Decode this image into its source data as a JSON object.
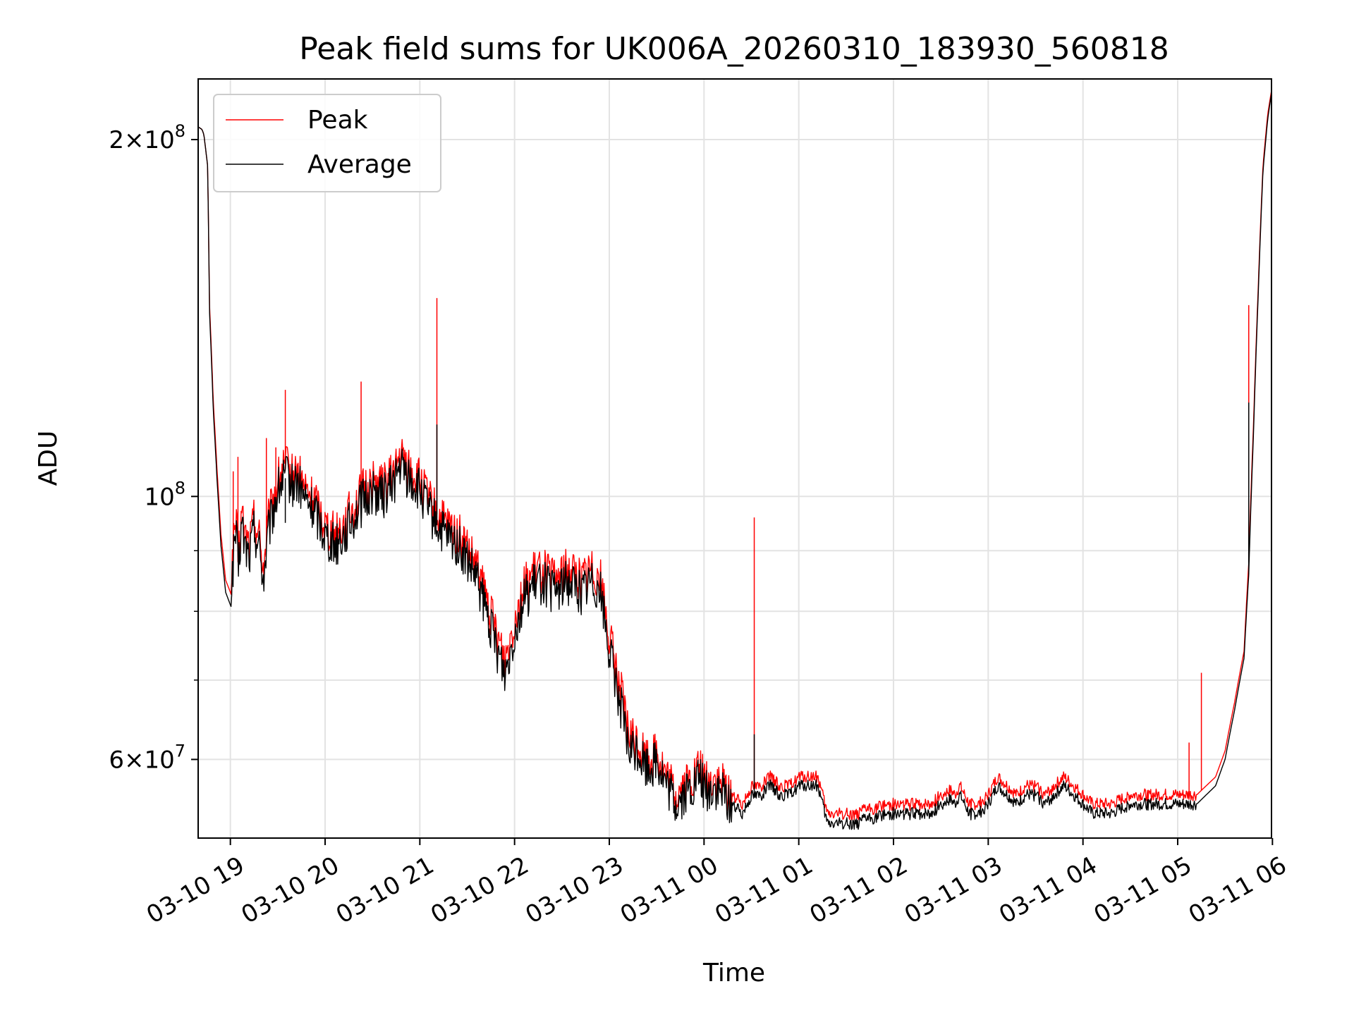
{
  "chart_data": {
    "type": "line",
    "title": "Peak field sums for UK006A_20260310_183930_560818",
    "xlabel": "Time",
    "ylabel": "ADU",
    "yscale": "log",
    "ylim": [
      51500000,
      225000000
    ],
    "xlim_hours": [
      18.66,
      29.99
    ],
    "grid": true,
    "legend_position": "upper left",
    "x_ticks": [
      {
        "hour": 19,
        "label": "03-10 19"
      },
      {
        "hour": 20,
        "label": "03-10 20"
      },
      {
        "hour": 21,
        "label": "03-10 21"
      },
      {
        "hour": 22,
        "label": "03-10 22"
      },
      {
        "hour": 23,
        "label": "03-10 23"
      },
      {
        "hour": 24,
        "label": "03-11 00"
      },
      {
        "hour": 25,
        "label": "03-11 01"
      },
      {
        "hour": 26,
        "label": "03-11 02"
      },
      {
        "hour": 27,
        "label": "03-11 03"
      },
      {
        "hour": 28,
        "label": "03-11 04"
      },
      {
        "hour": 29,
        "label": "03-11 05"
      },
      {
        "hour": 30,
        "label": "03-11 06"
      }
    ],
    "y_major_ticks": [
      {
        "value": 60000000,
        "mant": "6",
        "exp": "7"
      },
      {
        "value": 100000000,
        "mant": "",
        "exp": "8"
      },
      {
        "value": 200000000,
        "mant": "2",
        "exp": "8"
      }
    ],
    "y_minor_ticks": [
      70000000,
      80000000,
      90000000
    ],
    "series": [
      {
        "name": "Peak",
        "color": "#ff0000",
        "x_hours": [
          18.66,
          18.7,
          18.72,
          18.76,
          18.78,
          18.82,
          18.86,
          18.9,
          18.95,
          19.0,
          19.03,
          19.05,
          19.07,
          19.08,
          19.1,
          19.12,
          19.15,
          19.2,
          19.25,
          19.3,
          19.35,
          19.4,
          19.45,
          19.5,
          19.55,
          19.6,
          19.65,
          19.7,
          19.8,
          19.9,
          20.0,
          20.1,
          20.2,
          20.3,
          20.4,
          20.5,
          20.6,
          20.7,
          20.8,
          20.9,
          21.0,
          21.1,
          21.2,
          21.3,
          21.4,
          21.5,
          21.6,
          21.7,
          21.8,
          21.9,
          22.0,
          22.1,
          22.2,
          22.3,
          22.4,
          22.5,
          22.6,
          22.7,
          22.8,
          22.9,
          23.0,
          23.1,
          23.2,
          23.3,
          23.4,
          23.5,
          23.6,
          23.7,
          23.8,
          23.9,
          23.95,
          24.0,
          24.05,
          24.1,
          24.15,
          24.2,
          24.3,
          24.4,
          24.5,
          24.6,
          24.7,
          24.8,
          24.9,
          25.0,
          25.1,
          25.2,
          25.3,
          25.4,
          25.5,
          25.6,
          25.65,
          25.7,
          25.8,
          25.9,
          26.0,
          26.1,
          26.2,
          26.3,
          26.4,
          26.5,
          26.6,
          26.65,
          26.7,
          26.8,
          26.9,
          27.0,
          27.1,
          27.2,
          27.3,
          27.4,
          27.5,
          27.6,
          27.7,
          27.8,
          27.9,
          28.0,
          28.1,
          28.2,
          28.3,
          28.4,
          28.5,
          28.6,
          28.7,
          28.8,
          28.9,
          29.0,
          29.1,
          29.2,
          29.3,
          29.4,
          29.5,
          29.6,
          29.7,
          29.75,
          29.8,
          29.85,
          29.9,
          29.95,
          29.99
        ],
        "values_M": [
          205,
          204,
          202,
          190,
          145,
          120,
          105,
          93,
          85,
          83,
          90,
          95,
          93,
          88,
          92,
          97,
          93,
          91,
          96,
          93,
          87,
          95,
          99,
          103,
          105,
          106,
          104,
          105,
          101,
          99,
          95,
          93,
          95,
          98,
          101,
          103,
          102,
          104,
          108,
          105,
          103,
          99,
          96,
          94,
          93,
          90,
          87,
          82,
          77,
          73,
          79,
          84,
          86,
          87,
          85,
          86,
          87,
          85,
          87,
          86,
          76,
          70,
          63,
          62,
          60,
          61,
          58,
          56,
          57,
          58,
          59,
          58,
          57,
          58,
          57,
          57,
          56,
          55,
          57,
          57,
          58,
          57,
          57,
          58,
          58,
          58,
          54,
          54,
          54,
          54,
          54,
          54.5,
          54.5,
          55,
          55,
          55,
          55,
          55,
          55,
          56,
          56.5,
          56,
          57,
          55,
          55,
          56,
          58,
          57,
          56,
          57,
          57,
          56,
          57,
          58,
          57,
          56,
          55,
          55,
          55,
          55.5,
          56,
          56,
          56,
          56,
          56,
          56,
          56,
          56,
          57,
          58,
          61,
          67,
          74,
          88,
          115,
          150,
          190,
          210,
          220
        ],
        "spikes": [
          {
            "hour": 19.03,
            "value_M": 105
          },
          {
            "hour": 19.08,
            "value_M": 108
          },
          {
            "hour": 19.38,
            "value_M": 112
          },
          {
            "hour": 19.48,
            "value_M": 110
          },
          {
            "hour": 19.58,
            "value_M": 123
          },
          {
            "hour": 20.38,
            "value_M": 125
          },
          {
            "hour": 21.18,
            "value_M": 147
          },
          {
            "hour": 24.53,
            "value_M": 96
          },
          {
            "hour": 29.12,
            "value_M": 62
          },
          {
            "hour": 29.25,
            "value_M": 71
          },
          {
            "hour": 29.75,
            "value_M": 145
          }
        ]
      },
      {
        "name": "Average",
        "color": "#000000",
        "x_hours": [
          18.66,
          18.7,
          18.72,
          18.76,
          18.78,
          18.82,
          18.86,
          18.9,
          18.95,
          19.0,
          19.03,
          19.05,
          19.07,
          19.08,
          19.1,
          19.12,
          19.15,
          19.2,
          19.25,
          19.3,
          19.35,
          19.4,
          19.45,
          19.5,
          19.55,
          19.6,
          19.65,
          19.7,
          19.8,
          19.9,
          20.0,
          20.1,
          20.2,
          20.3,
          20.4,
          20.5,
          20.6,
          20.7,
          20.8,
          20.9,
          21.0,
          21.1,
          21.2,
          21.3,
          21.4,
          21.5,
          21.6,
          21.7,
          21.8,
          21.9,
          22.0,
          22.1,
          22.2,
          22.3,
          22.4,
          22.5,
          22.6,
          22.7,
          22.8,
          22.9,
          23.0,
          23.1,
          23.2,
          23.3,
          23.4,
          23.5,
          23.6,
          23.7,
          23.8,
          23.9,
          23.95,
          24.0,
          24.05,
          24.1,
          24.15,
          24.2,
          24.3,
          24.4,
          24.5,
          24.6,
          24.7,
          24.8,
          24.9,
          25.0,
          25.1,
          25.2,
          25.3,
          25.4,
          25.5,
          25.6,
          25.65,
          25.7,
          25.8,
          25.9,
          26.0,
          26.1,
          26.2,
          26.3,
          26.4,
          26.5,
          26.6,
          26.65,
          26.7,
          26.8,
          26.9,
          27.0,
          27.1,
          27.2,
          27.3,
          27.4,
          27.5,
          27.6,
          27.7,
          27.8,
          27.9,
          28.0,
          28.1,
          28.2,
          28.3,
          28.4,
          28.5,
          28.6,
          28.7,
          28.8,
          28.9,
          29.0,
          29.1,
          29.2,
          29.3,
          29.4,
          29.5,
          29.6,
          29.7,
          29.75,
          29.8,
          29.85,
          29.9,
          29.95,
          29.99
        ],
        "values_M": [
          205,
          204,
          202,
          190,
          143,
          118,
          103,
          91,
          83,
          81,
          88,
          93,
          91,
          86,
          90,
          95,
          91,
          89,
          94,
          91,
          85,
          93,
          97,
          101,
          103,
          104,
          102,
          103,
          99,
          97,
          93,
          91,
          93,
          96,
          99,
          101,
          100,
          102,
          106,
          103,
          101,
          97,
          94,
          92,
          91,
          88,
          85,
          80,
          75,
          71,
          77,
          82,
          84,
          85,
          83,
          84,
          85,
          83,
          85,
          84,
          74,
          68,
          61,
          61,
          59,
          60,
          57,
          55,
          56,
          57,
          58,
          57,
          56,
          57,
          56,
          56,
          55,
          54,
          56,
          56,
          57,
          56,
          56,
          57,
          57,
          57,
          53,
          53,
          53,
          53,
          53,
          53.5,
          53.5,
          54,
          54,
          54,
          54,
          54,
          54,
          55,
          55.5,
          55,
          56,
          54,
          54,
          55,
          57,
          56,
          55,
          56,
          56,
          55,
          56,
          57,
          56,
          55,
          54,
          54,
          54,
          54.5,
          55,
          55,
          55,
          55,
          55,
          55,
          55,
          55,
          56,
          57,
          60,
          66,
          73,
          86,
          113,
          148,
          188,
          208,
          219
        ],
        "spikes": [
          {
            "hour": 19.58,
            "value_M": 95
          },
          {
            "hour": 20.38,
            "value_M": 103
          },
          {
            "hour": 21.18,
            "value_M": 115
          },
          {
            "hour": 24.53,
            "value_M": 63
          },
          {
            "hour": 29.75,
            "value_M": 120
          }
        ]
      }
    ]
  }
}
